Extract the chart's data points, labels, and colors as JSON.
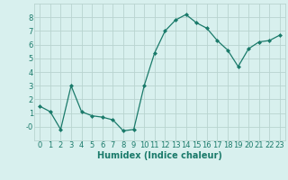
{
  "x": [
    0,
    1,
    2,
    3,
    4,
    5,
    6,
    7,
    8,
    9,
    10,
    11,
    12,
    13,
    14,
    15,
    16,
    17,
    18,
    19,
    20,
    21,
    22,
    23
  ],
  "y": [
    1.5,
    1.1,
    -0.2,
    3.0,
    1.1,
    0.8,
    0.7,
    0.5,
    -0.3,
    -0.2,
    3.0,
    5.4,
    7.0,
    7.8,
    8.2,
    7.6,
    7.2,
    6.3,
    5.6,
    4.4,
    5.7,
    6.2,
    6.3,
    6.7
  ],
  "line_color": "#1a7a6a",
  "marker": "D",
  "marker_size": 2,
  "bg_color": "#d8f0ee",
  "grid_color": "#b8d4cf",
  "xlabel": "Humidex (Indice chaleur)",
  "xlabel_fontsize": 7,
  "tick_fontsize": 6,
  "xlim": [
    -0.5,
    23.5
  ],
  "ylim": [
    -1.0,
    9.0
  ],
  "yticks": [
    0,
    1,
    2,
    3,
    4,
    5,
    6,
    7,
    8
  ],
  "ytick_labels": [
    "-0",
    "1",
    "2",
    "3",
    "4",
    "5",
    "6",
    "7",
    "8"
  ],
  "xticks": [
    0,
    1,
    2,
    3,
    4,
    5,
    6,
    7,
    8,
    9,
    10,
    11,
    12,
    13,
    14,
    15,
    16,
    17,
    18,
    19,
    20,
    21,
    22,
    23
  ]
}
